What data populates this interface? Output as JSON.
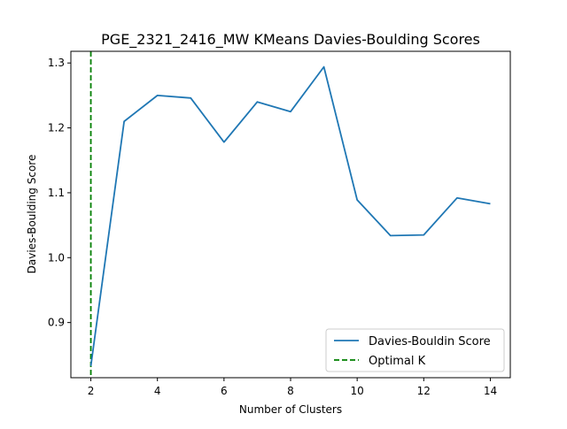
{
  "chart_data": {
    "type": "line",
    "title": "PGE_2321_2416_MW KMeans Davies-Boulding Scores",
    "xlabel": "Number of Clusters",
    "ylabel": "Davies-Boulding Score",
    "xlim": [
      1.4,
      14.6
    ],
    "ylim": [
      0.815,
      1.318
    ],
    "x_ticks": [
      2,
      4,
      6,
      8,
      10,
      12,
      14
    ],
    "y_ticks": [
      0.9,
      1.0,
      1.1,
      1.2,
      1.3
    ],
    "grid": false,
    "legend_position": "bottom-right",
    "series": [
      {
        "name": "Davies-Bouldin Score",
        "color": "#1f77b4",
        "style": "solid",
        "x": [
          2,
          3,
          4,
          5,
          6,
          7,
          8,
          9,
          10,
          11,
          12,
          13,
          14
        ],
        "values": [
          0.833,
          1.21,
          1.25,
          1.246,
          1.178,
          1.24,
          1.225,
          1.294,
          1.089,
          1.034,
          1.035,
          1.092,
          1.083
        ]
      }
    ],
    "reference_lines": [
      {
        "name": "Optimal K",
        "orientation": "vertical",
        "x": 2,
        "color": "#008000",
        "style": "dashed"
      }
    ]
  }
}
